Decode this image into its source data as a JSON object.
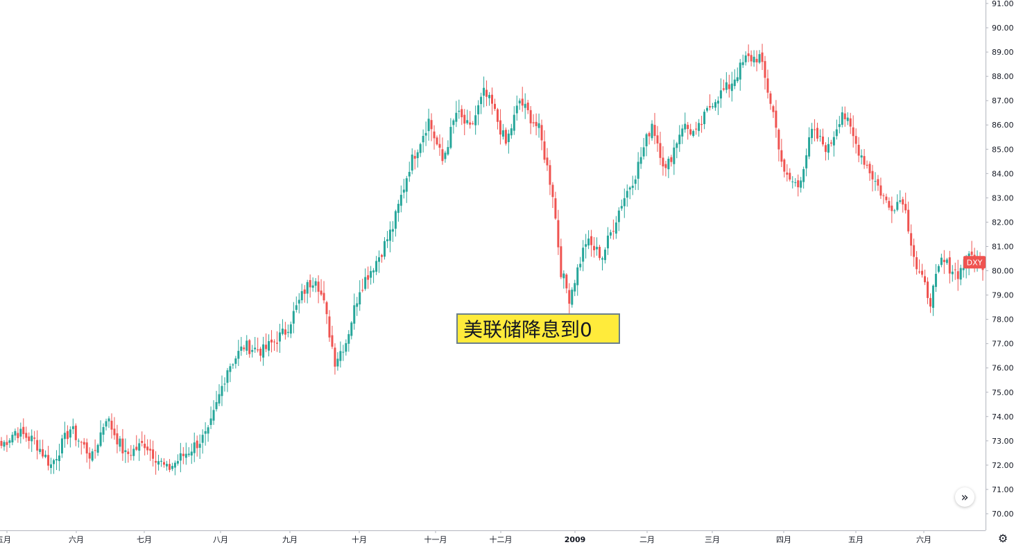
{
  "chart_data": {
    "type": "candlestick",
    "symbol": "DXY",
    "up_color": "#26a69a",
    "down_color": "#ef5350",
    "y_ticks": [
      "70.00",
      "71.00",
      "72.00",
      "73.00",
      "74.00",
      "75.00",
      "76.00",
      "77.00",
      "78.00",
      "79.00",
      "80.00",
      "81.00",
      "82.00",
      "83.00",
      "84.00",
      "85.00",
      "86.00",
      "87.00",
      "88.00",
      "89.00",
      "90.00",
      "91.00"
    ],
    "ylim": [
      69.2,
      91.2
    ],
    "x_ticks": [
      {
        "label": "五月",
        "year": false
      },
      {
        "label": "六月",
        "year": false
      },
      {
        "label": "七月",
        "year": false
      },
      {
        "label": "八月",
        "year": false
      },
      {
        "label": "九月",
        "year": false
      },
      {
        "label": "十月",
        "year": false
      },
      {
        "label": "十一月",
        "year": false
      },
      {
        "label": "十二月",
        "year": false
      },
      {
        "label": "2009",
        "year": true
      },
      {
        "label": "二月",
        "year": false
      },
      {
        "label": "三月",
        "year": false
      },
      {
        "label": "四月",
        "year": false
      },
      {
        "label": "五月",
        "year": false
      },
      {
        "label": "六月",
        "year": false
      }
    ],
    "last_value": 80.35,
    "anchors": [
      [
        0,
        72.8
      ],
      [
        5,
        73.4
      ],
      [
        12,
        73.0
      ],
      [
        18,
        72.0
      ],
      [
        25,
        73.5
      ],
      [
        33,
        72.3
      ],
      [
        38,
        74.0
      ],
      [
        45,
        72.4
      ],
      [
        52,
        72.9
      ],
      [
        60,
        71.8
      ],
      [
        68,
        72.6
      ],
      [
        75,
        73.3
      ],
      [
        82,
        76.0
      ],
      [
        88,
        76.9
      ],
      [
        95,
        76.7
      ],
      [
        103,
        77.5
      ],
      [
        110,
        79.2
      ],
      [
        114,
        79.8
      ],
      [
        117,
        78.6
      ],
      [
        121,
        76.3
      ],
      [
        125,
        77.1
      ],
      [
        130,
        79.3
      ],
      [
        137,
        80.6
      ],
      [
        142,
        81.8
      ],
      [
        148,
        84.3
      ],
      [
        155,
        86.2
      ],
      [
        160,
        84.5
      ],
      [
        165,
        86.5
      ],
      [
        170,
        85.8
      ],
      [
        175,
        87.3
      ],
      [
        178,
        86.8
      ],
      [
        183,
        85.2
      ],
      [
        188,
        87.0
      ],
      [
        195,
        85.8
      ],
      [
        200,
        83.2
      ],
      [
        203,
        80.0
      ],
      [
        206,
        78.9
      ],
      [
        212,
        81.2
      ],
      [
        218,
        80.6
      ],
      [
        225,
        82.8
      ],
      [
        230,
        84.0
      ],
      [
        236,
        86.1
      ],
      [
        241,
        84.1
      ],
      [
        247,
        86.0
      ],
      [
        252,
        85.6
      ],
      [
        258,
        87.0
      ],
      [
        264,
        87.6
      ],
      [
        270,
        88.7
      ],
      [
        275,
        88.8
      ],
      [
        280,
        86.5
      ],
      [
        284,
        83.9
      ],
      [
        289,
        83.5
      ],
      [
        294,
        85.7
      ],
      [
        300,
        85.0
      ],
      [
        305,
        86.6
      ],
      [
        310,
        85.2
      ],
      [
        316,
        83.9
      ],
      [
        322,
        82.6
      ],
      [
        327,
        83.0
      ],
      [
        332,
        80.1
      ],
      [
        337,
        78.8
      ],
      [
        341,
        80.4
      ],
      [
        347,
        79.9
      ],
      [
        352,
        80.6
      ],
      [
        356,
        80.3
      ]
    ],
    "fed_annotation": "美联储降息到0"
  },
  "ui": {
    "scroll_icon": "double-chevron-right-icon",
    "scroll_glyph": "»",
    "settings_icon": "gear-icon",
    "settings_glyph": "⚙"
  }
}
